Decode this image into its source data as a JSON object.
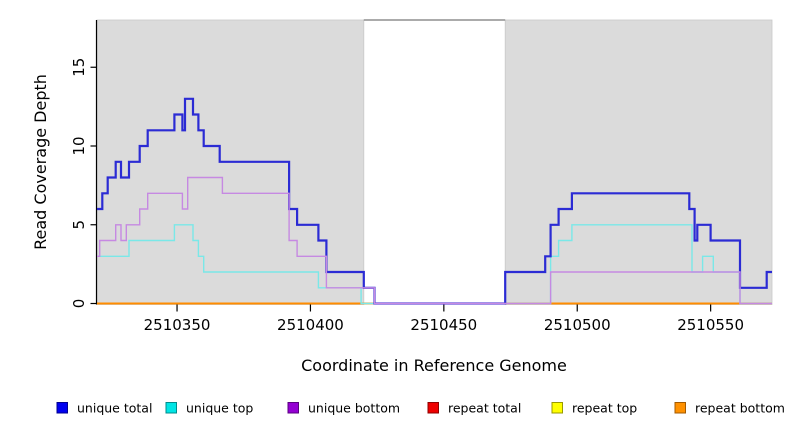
{
  "chart_data": {
    "type": "line",
    "subtype": "step-coverage",
    "title": "",
    "xlabel": "Coordinate in Reference Genome",
    "ylabel": "Read Coverage Depth",
    "xlim": [
      2510320,
      2510573
    ],
    "ylim": [
      0,
      18
    ],
    "grid": false,
    "xticks": [
      {
        "value": 2510350,
        "label": "2510350"
      },
      {
        "value": 2510400,
        "label": "2510400"
      },
      {
        "value": 2510450,
        "label": "2510450"
      },
      {
        "value": 2510500,
        "label": "2510500"
      },
      {
        "value": 2510550,
        "label": "2510550"
      }
    ],
    "yticks": [
      {
        "value": 0,
        "label": "0"
      },
      {
        "value": 5,
        "label": "5"
      },
      {
        "value": 10,
        "label": "10"
      },
      {
        "value": 15,
        "label": "15"
      }
    ],
    "panel": {
      "background": "#FFFFFF",
      "shade_fill": "#DBDBDB",
      "shade_border": "#C9C9C9",
      "shaded_regions": [
        {
          "x1": 2510320,
          "x2": 2510420
        },
        {
          "x1": 2510473,
          "x2": 2510573
        }
      ],
      "gap_top_line": {
        "x1": 2510420,
        "x2": 2510473,
        "y": 18,
        "color": "#8F8F8F"
      }
    },
    "series": [
      {
        "name": "unique total",
        "color": "#2B2BD4",
        "line_width": 2.2,
        "draw_order": 4,
        "x_end": 2510573,
        "steps": [
          [
            2510320,
            6
          ],
          [
            2510322,
            7
          ],
          [
            2510324,
            8
          ],
          [
            2510327,
            9
          ],
          [
            2510329,
            8
          ],
          [
            2510332,
            9
          ],
          [
            2510336,
            10
          ],
          [
            2510339,
            11
          ],
          [
            2510349,
            12
          ],
          [
            2510352,
            11
          ],
          [
            2510353,
            13
          ],
          [
            2510356,
            12
          ],
          [
            2510358,
            11
          ],
          [
            2510360,
            10
          ],
          [
            2510366,
            9
          ],
          [
            2510392,
            6
          ],
          [
            2510395,
            5
          ],
          [
            2510403,
            4
          ],
          [
            2510406,
            2
          ],
          [
            2510420,
            1
          ],
          [
            2510424,
            0
          ],
          [
            2510473,
            2
          ],
          [
            2510488,
            3
          ],
          [
            2510490,
            5
          ],
          [
            2510493,
            6
          ],
          [
            2510498,
            7
          ],
          [
            2510542,
            6
          ],
          [
            2510544,
            4
          ],
          [
            2510545,
            5
          ],
          [
            2510550,
            4
          ],
          [
            2510561,
            1
          ],
          [
            2510571,
            2
          ]
        ]
      },
      {
        "name": "unique top",
        "color": "#7AE8E8",
        "line_width": 1.4,
        "draw_order": 3,
        "x_end": 2510573,
        "steps": [
          [
            2510320,
            3
          ],
          [
            2510332,
            4
          ],
          [
            2510349,
            5
          ],
          [
            2510356,
            4
          ],
          [
            2510358,
            3
          ],
          [
            2510360,
            2
          ],
          [
            2510403,
            1
          ],
          [
            2510419,
            0
          ],
          [
            2510490,
            3
          ],
          [
            2510493,
            4
          ],
          [
            2510498,
            5
          ],
          [
            2510543,
            2
          ],
          [
            2510547,
            3
          ],
          [
            2510551,
            2
          ],
          [
            2510561,
            0
          ]
        ]
      },
      {
        "name": "unique bottom",
        "color": "#C689E2",
        "line_width": 1.4,
        "draw_order": 5,
        "x_end": 2510573,
        "steps": [
          [
            2510320,
            3
          ],
          [
            2510321,
            4
          ],
          [
            2510327,
            5
          ],
          [
            2510329,
            4
          ],
          [
            2510331,
            5
          ],
          [
            2510336,
            6
          ],
          [
            2510339,
            7
          ],
          [
            2510352,
            6
          ],
          [
            2510354,
            8
          ],
          [
            2510367,
            7
          ],
          [
            2510392,
            4
          ],
          [
            2510395,
            3
          ],
          [
            2510406,
            1
          ],
          [
            2510424,
            0
          ],
          [
            2510490,
            2
          ],
          [
            2510561,
            0
          ]
        ]
      },
      {
        "name": "repeat total",
        "color": "#E02020",
        "line_width": 1.6,
        "draw_order": 0,
        "x_end": 2510573,
        "steps": [
          [
            2510320,
            0
          ]
        ]
      },
      {
        "name": "repeat top",
        "color": "#FFE600",
        "line_width": 1.6,
        "draw_order": 1,
        "x_end": 2510573,
        "steps": [
          [
            2510320,
            0
          ]
        ]
      },
      {
        "name": "repeat bottom",
        "color": "#FF8C00",
        "line_width": 2.0,
        "draw_order": 2,
        "x_end": 2510573,
        "steps": [
          [
            2510320,
            0
          ]
        ]
      }
    ],
    "legend_position": "bottom"
  },
  "legend": {
    "items": [
      {
        "label": "unique total",
        "fill": "#0000F0",
        "border": "#000090"
      },
      {
        "label": "unique top",
        "fill": "#00E5E5",
        "border": "#008C8C"
      },
      {
        "label": "unique bottom",
        "fill": "#9400D3",
        "border": "#5A0080"
      },
      {
        "label": "repeat total",
        "fill": "#EE0000",
        "border": "#8F0000"
      },
      {
        "label": "repeat top",
        "fill": "#FFFF00",
        "border": "#999900"
      },
      {
        "label": "repeat bottom",
        "fill": "#FF9100",
        "border": "#A35A00"
      }
    ]
  }
}
